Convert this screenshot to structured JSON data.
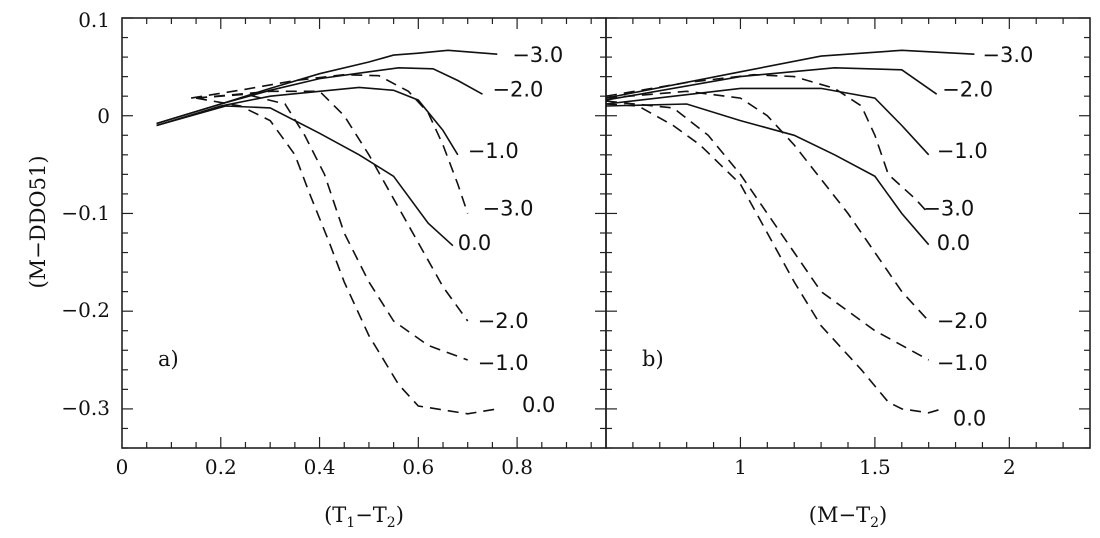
{
  "chart_data": {
    "type": "line",
    "ylabel": "(M−DDO51)",
    "yticks": [
      0.1,
      0,
      -0.1,
      -0.2,
      -0.3
    ],
    "ytick_labels": [
      "0.1",
      "0",
      "−0.1",
      "−0.2",
      "−0.3"
    ],
    "ylim": [
      -0.34,
      0.1
    ],
    "styles": {
      "solid": "Solid lines",
      "dashed": "Dashed lines"
    },
    "panels": [
      {
        "tag": "a)",
        "xlabel_main": "(T",
        "xlabel_sub1": "1",
        "xlabel_mid": "−T",
        "xlabel_sub2": "2",
        "xlabel_end": ")",
        "xlim": [
          0,
          0.98
        ],
        "xticks": [
          0,
          0.2,
          0.4,
          0.6,
          0.8
        ],
        "xtick_labels": [
          "0",
          "0.2",
          "0.4",
          "0.6",
          "0.8"
        ],
        "series": [
          {
            "name": "−3.0",
            "style": "solid",
            "x": [
              0.07,
              0.2,
              0.3,
              0.4,
              0.5,
              0.55,
              0.6,
              0.66,
              0.76
            ],
            "y": [
              -0.008,
              0.012,
              0.028,
              0.043,
              0.055,
              0.062,
              0.064,
              0.067,
              0.063
            ],
            "label_at": [
              0.79,
              0.062
            ]
          },
          {
            "name": "−2.0",
            "style": "solid",
            "x": [
              0.07,
              0.2,
              0.3,
              0.4,
              0.5,
              0.56,
              0.63,
              0.68,
              0.73
            ],
            "y": [
              -0.008,
              0.012,
              0.026,
              0.038,
              0.045,
              0.049,
              0.048,
              0.036,
              0.022
            ],
            "label_at": [
              0.75,
              0.027
            ]
          },
          {
            "name": "−1.0",
            "style": "solid",
            "x": [
              0.07,
              0.2,
              0.3,
              0.4,
              0.48,
              0.55,
              0.6,
              0.65,
              0.68
            ],
            "y": [
              -0.01,
              0.01,
              0.02,
              0.025,
              0.029,
              0.026,
              0.016,
              -0.015,
              -0.04
            ],
            "label_at": [
              0.7,
              -0.036
            ]
          },
          {
            "name": "0.0",
            "style": "solid",
            "x": [
              0.07,
              0.21,
              0.3,
              0.4,
              0.48,
              0.55,
              0.62,
              0.67
            ],
            "y": [
              -0.01,
              0.01,
              0.008,
              -0.018,
              -0.04,
              -0.062,
              -0.11,
              -0.133
            ],
            "label_at": [
              0.68,
              -0.13
            ]
          },
          {
            "name": "−3.0",
            "style": "dashed",
            "x": [
              0.14,
              0.25,
              0.35,
              0.45,
              0.52,
              0.58,
              0.62,
              0.65,
              0.68,
              0.7
            ],
            "y": [
              0.018,
              0.027,
              0.036,
              0.042,
              0.041,
              0.025,
              0.003,
              -0.03,
              -0.07,
              -0.1
            ],
            "label_at": [
              0.73,
              -0.095
            ]
          },
          {
            "name": "−2.0",
            "style": "dashed",
            "x": [
              0.15,
              0.3,
              0.4,
              0.45,
              0.5,
              0.55,
              0.6,
              0.65,
              0.7
            ],
            "y": [
              0.018,
              0.025,
              0.025,
              0.0,
              -0.04,
              -0.085,
              -0.13,
              -0.175,
              -0.21
            ],
            "label_at": [
              0.72,
              -0.21
            ]
          },
          {
            "name": "−1.0",
            "style": "dashed",
            "x": [
              0.15,
              0.25,
              0.33,
              0.37,
              0.41,
              0.45,
              0.5,
              0.55,
              0.62,
              0.7
            ],
            "y": [
              0.018,
              0.022,
              0.012,
              -0.02,
              -0.06,
              -0.12,
              -0.17,
              -0.21,
              -0.235,
              -0.25
            ],
            "label_at": [
              0.72,
              -0.253
            ]
          },
          {
            "name": "0.0",
            "style": "dashed",
            "x": [
              0.15,
              0.24,
              0.3,
              0.35,
              0.38,
              0.42,
              0.45,
              0.5,
              0.56,
              0.6,
              0.7,
              0.76
            ],
            "y": [
              0.018,
              0.01,
              -0.005,
              -0.04,
              -0.08,
              -0.13,
              -0.17,
              -0.225,
              -0.275,
              -0.297,
              -0.305,
              -0.3
            ],
            "label_at": [
              0.81,
              -0.296
            ]
          }
        ]
      },
      {
        "tag": "b)",
        "xlabel_main": "(M",
        "xlabel_sub1": "",
        "xlabel_mid": "−T",
        "xlabel_sub2": "2",
        "xlabel_end": ")",
        "xlim": [
          0.5,
          2.3
        ],
        "xticks": [
          1,
          1.5,
          2
        ],
        "xtick_labels": [
          "1",
          "1.5",
          "2"
        ],
        "series": [
          {
            "name": "−3.0",
            "style": "solid",
            "x": [
              0.5,
              1.0,
              1.3,
              1.6,
              1.87
            ],
            "y": [
              0.018,
              0.045,
              0.061,
              0.067,
              0.063
            ],
            "label_at": [
              1.9,
              0.062
            ]
          },
          {
            "name": "−2.0",
            "style": "solid",
            "x": [
              0.5,
              1.0,
              1.35,
              1.6,
              1.73
            ],
            "y": [
              0.016,
              0.04,
              0.049,
              0.047,
              0.022
            ],
            "label_at": [
              1.75,
              0.027
            ]
          },
          {
            "name": "−1.0",
            "style": "solid",
            "x": [
              0.5,
              1.0,
              1.3,
              1.5,
              1.6,
              1.7
            ],
            "y": [
              0.012,
              0.028,
              0.028,
              0.018,
              -0.01,
              -0.04
            ],
            "label_at": [
              1.73,
              -0.036
            ]
          },
          {
            "name": "0.0",
            "style": "solid",
            "x": [
              0.5,
              0.8,
              1.0,
              1.2,
              1.35,
              1.5,
              1.6,
              1.7
            ],
            "y": [
              0.01,
              0.012,
              -0.005,
              -0.02,
              -0.04,
              -0.062,
              -0.1,
              -0.132
            ],
            "label_at": [
              1.73,
              -0.13
            ]
          },
          {
            "name": "−3.0",
            "style": "dashed",
            "x": [
              0.5,
              0.8,
              1.05,
              1.2,
              1.35,
              1.45,
              1.5,
              1.55,
              1.65,
              1.7
            ],
            "y": [
              0.02,
              0.034,
              0.042,
              0.04,
              0.028,
              0.01,
              -0.02,
              -0.06,
              -0.085,
              -0.1
            ],
            "label_at": [
              1.68,
              -0.095
            ]
          },
          {
            "name": "−2.0",
            "style": "dashed",
            "x": [
              0.5,
              0.8,
              1.0,
              1.1,
              1.2,
              1.3,
              1.4,
              1.5,
              1.6,
              1.7
            ],
            "y": [
              0.018,
              0.025,
              0.018,
              0.0,
              -0.03,
              -0.065,
              -0.1,
              -0.14,
              -0.18,
              -0.21
            ],
            "label_at": [
              1.73,
              -0.21
            ]
          },
          {
            "name": "−1.0",
            "style": "dashed",
            "x": [
              0.5,
              0.75,
              0.88,
              1.0,
              1.1,
              1.2,
              1.3,
              1.5,
              1.7
            ],
            "y": [
              0.015,
              0.008,
              -0.02,
              -0.06,
              -0.1,
              -0.14,
              -0.18,
              -0.22,
              -0.25
            ],
            "label_at": [
              1.73,
              -0.253
            ]
          },
          {
            "name": "0.0",
            "style": "dashed",
            "x": [
              0.5,
              0.62,
              0.75,
              0.85,
              1.0,
              1.1,
              1.2,
              1.3,
              1.45,
              1.55,
              1.6,
              1.7,
              1.75
            ],
            "y": [
              0.012,
              0.01,
              -0.01,
              -0.03,
              -0.07,
              -0.12,
              -0.17,
              -0.215,
              -0.26,
              -0.293,
              -0.3,
              -0.304,
              -0.3
            ],
            "label_at": [
              1.79,
              -0.31
            ]
          }
        ]
      }
    ]
  }
}
